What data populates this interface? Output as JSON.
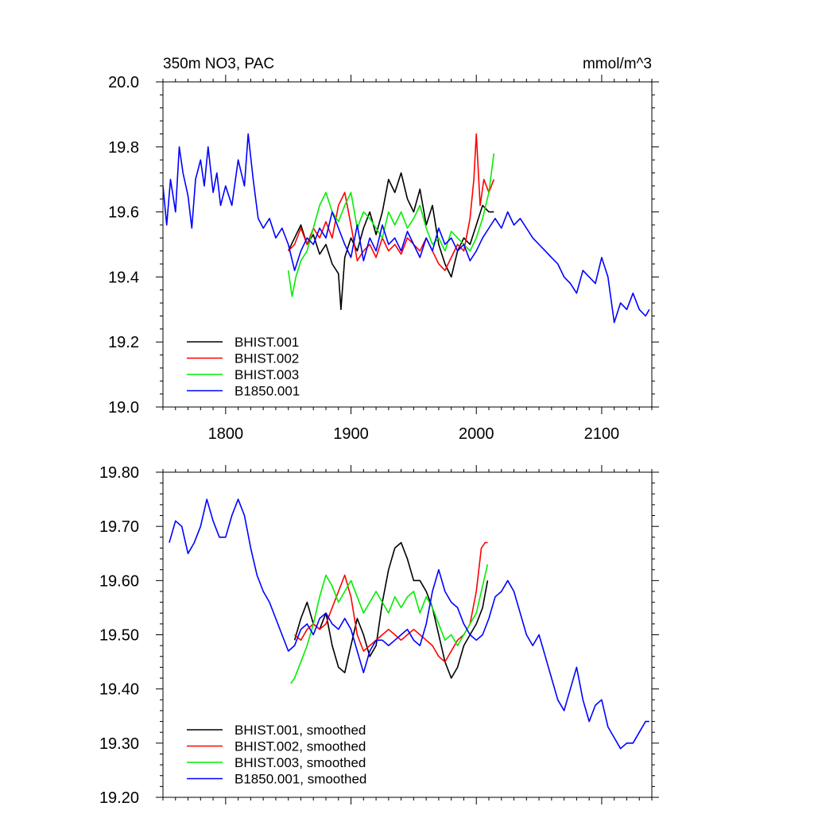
{
  "chart_data": [
    {
      "type": "line",
      "left_title": "350m NO3, PAC",
      "right_title": "mmol/m^3",
      "xlim": [
        1750,
        2140
      ],
      "ylim": [
        19.0,
        20.0
      ],
      "x_ticks": [
        1800,
        1900,
        2000,
        2100
      ],
      "x_tick_labels": [
        "1800",
        "1900",
        "2000",
        "2100"
      ],
      "y_ticks": [
        19.0,
        19.2,
        19.4,
        19.6,
        19.8,
        20.0
      ],
      "y_tick_labels": [
        "19.0",
        "19.2",
        "19.4",
        "19.6",
        "19.8",
        "20.0"
      ],
      "legend_position": "bottom-left",
      "grid": false,
      "series": [
        {
          "name": "BHIST.001",
          "color": "#000000",
          "x": [
            1850,
            1855,
            1860,
            1865,
            1870,
            1875,
            1880,
            1885,
            1890,
            1892,
            1895,
            1900,
            1905,
            1910,
            1915,
            1920,
            1925,
            1930,
            1935,
            1940,
            1945,
            1950,
            1955,
            1960,
            1965,
            1970,
            1975,
            1980,
            1985,
            1990,
            1995,
            2000,
            2005,
            2010,
            2014
          ],
          "y": [
            19.48,
            19.52,
            19.56,
            19.5,
            19.53,
            19.47,
            19.5,
            19.44,
            19.41,
            19.3,
            19.46,
            19.52,
            19.48,
            19.55,
            19.6,
            19.53,
            19.6,
            19.7,
            19.66,
            19.72,
            19.64,
            19.6,
            19.67,
            19.56,
            19.62,
            19.5,
            19.44,
            19.4,
            19.48,
            19.52,
            19.5,
            19.56,
            19.62,
            19.6,
            19.6
          ]
        },
        {
          "name": "BHIST.002",
          "color": "#ff0000",
          "x": [
            1850,
            1855,
            1860,
            1865,
            1870,
            1875,
            1880,
            1885,
            1890,
            1895,
            1900,
            1905,
            1910,
            1915,
            1920,
            1925,
            1930,
            1935,
            1940,
            1945,
            1950,
            1955,
            1960,
            1965,
            1970,
            1975,
            1980,
            1985,
            1990,
            1995,
            1998,
            2000,
            2003,
            2006,
            2010,
            2014
          ],
          "y": [
            19.48,
            19.5,
            19.55,
            19.5,
            19.55,
            19.52,
            19.57,
            19.52,
            19.62,
            19.66,
            19.56,
            19.45,
            19.48,
            19.5,
            19.46,
            19.52,
            19.48,
            19.5,
            19.47,
            19.52,
            19.5,
            19.48,
            19.52,
            19.48,
            19.44,
            19.42,
            19.46,
            19.5,
            19.48,
            19.58,
            19.7,
            19.84,
            19.62,
            19.7,
            19.66,
            19.7
          ]
        },
        {
          "name": "BHIST.003",
          "color": "#00ee00",
          "x": [
            1850,
            1853,
            1856,
            1860,
            1865,
            1870,
            1875,
            1880,
            1885,
            1890,
            1895,
            1900,
            1905,
            1910,
            1915,
            1920,
            1925,
            1930,
            1935,
            1940,
            1945,
            1950,
            1955,
            1960,
            1965,
            1970,
            1975,
            1980,
            1985,
            1990,
            1995,
            2000,
            2005,
            2010,
            2014
          ],
          "y": [
            19.42,
            19.34,
            19.4,
            19.45,
            19.48,
            19.55,
            19.62,
            19.66,
            19.6,
            19.57,
            19.62,
            19.66,
            19.55,
            19.6,
            19.58,
            19.55,
            19.52,
            19.6,
            19.56,
            19.6,
            19.55,
            19.58,
            19.62,
            19.55,
            19.5,
            19.52,
            19.48,
            19.54,
            19.52,
            19.5,
            19.48,
            19.52,
            19.58,
            19.66,
            19.78
          ]
        },
        {
          "name": "B1850.001",
          "color": "#0000ff",
          "x": [
            1750,
            1753,
            1756,
            1760,
            1763,
            1766,
            1770,
            1773,
            1776,
            1780,
            1783,
            1786,
            1790,
            1793,
            1796,
            1800,
            1805,
            1810,
            1815,
            1818,
            1822,
            1826,
            1830,
            1835,
            1840,
            1845,
            1850,
            1855,
            1860,
            1865,
            1870,
            1875,
            1880,
            1885,
            1890,
            1895,
            1900,
            1905,
            1910,
            1915,
            1920,
            1925,
            1930,
            1935,
            1940,
            1945,
            1950,
            1955,
            1960,
            1965,
            1970,
            1975,
            1980,
            1985,
            1990,
            1995,
            2000,
            2005,
            2010,
            2015,
            2020,
            2025,
            2030,
            2035,
            2040,
            2045,
            2050,
            2055,
            2060,
            2065,
            2070,
            2075,
            2080,
            2085,
            2090,
            2095,
            2100,
            2105,
            2110,
            2115,
            2120,
            2125,
            2130,
            2135,
            2138
          ],
          "y": [
            19.68,
            19.56,
            19.7,
            19.6,
            19.8,
            19.72,
            19.65,
            19.55,
            19.7,
            19.76,
            19.68,
            19.8,
            19.66,
            19.72,
            19.62,
            19.68,
            19.62,
            19.76,
            19.68,
            19.84,
            19.7,
            19.58,
            19.55,
            19.58,
            19.52,
            19.55,
            19.5,
            19.42,
            19.48,
            19.52,
            19.5,
            19.55,
            19.52,
            19.6,
            19.55,
            19.5,
            19.46,
            19.56,
            19.45,
            19.52,
            19.48,
            19.56,
            19.5,
            19.52,
            19.48,
            19.54,
            19.5,
            19.46,
            19.52,
            19.48,
            19.55,
            19.5,
            19.52,
            19.48,
            19.5,
            19.45,
            19.48,
            19.52,
            19.55,
            19.58,
            19.55,
            19.6,
            19.56,
            19.58,
            19.55,
            19.52,
            19.5,
            19.48,
            19.46,
            19.44,
            19.4,
            19.38,
            19.35,
            19.42,
            19.4,
            19.38,
            19.46,
            19.4,
            19.26,
            19.32,
            19.3,
            19.35,
            19.3,
            19.28,
            19.3
          ]
        }
      ]
    },
    {
      "type": "line",
      "xlim": [
        1750,
        2140
      ],
      "ylim": [
        19.2,
        19.8
      ],
      "x_ticks": [
        1800,
        1900,
        2000,
        2100
      ],
      "y_ticks": [
        19.2,
        19.3,
        19.4,
        19.5,
        19.6,
        19.7,
        19.8
      ],
      "y_tick_labels": [
        "19.20",
        "19.30",
        "19.40",
        "19.50",
        "19.60",
        "19.70",
        "19.80"
      ],
      "legend_position": "bottom-left",
      "grid": false,
      "series": [
        {
          "name": "BHIST.001, smoothed",
          "color": "#000000",
          "x": [
            1855,
            1860,
            1865,
            1870,
            1875,
            1880,
            1885,
            1890,
            1895,
            1900,
            1905,
            1910,
            1915,
            1920,
            1925,
            1930,
            1935,
            1940,
            1945,
            1950,
            1955,
            1960,
            1965,
            1970,
            1975,
            1980,
            1985,
            1990,
            1995,
            2000,
            2005,
            2009
          ],
          "y": [
            19.49,
            19.53,
            19.56,
            19.52,
            19.51,
            19.54,
            19.48,
            19.44,
            19.43,
            19.48,
            19.53,
            19.5,
            19.46,
            19.48,
            19.56,
            19.62,
            19.66,
            19.67,
            19.64,
            19.6,
            19.6,
            19.58,
            19.55,
            19.5,
            19.45,
            19.42,
            19.44,
            19.48,
            19.5,
            19.52,
            19.55,
            19.6
          ]
        },
        {
          "name": "BHIST.002, smoothed",
          "color": "#ff0000",
          "x": [
            1855,
            1860,
            1865,
            1870,
            1875,
            1880,
            1885,
            1890,
            1895,
            1900,
            1905,
            1910,
            1915,
            1920,
            1925,
            1930,
            1935,
            1940,
            1945,
            1950,
            1955,
            1960,
            1965,
            1970,
            1975,
            1980,
            1985,
            1990,
            1995,
            2000,
            2004,
            2007,
            2009
          ],
          "y": [
            19.5,
            19.49,
            19.51,
            19.52,
            19.51,
            19.52,
            19.55,
            19.58,
            19.61,
            19.57,
            19.5,
            19.47,
            19.48,
            19.49,
            19.5,
            19.51,
            19.5,
            19.49,
            19.5,
            19.51,
            19.5,
            19.49,
            19.48,
            19.46,
            19.45,
            19.47,
            19.49,
            19.5,
            19.52,
            19.58,
            19.66,
            19.67,
            19.67
          ]
        },
        {
          "name": "BHIST.003, smoothed",
          "color": "#00ee00",
          "x": [
            1852,
            1855,
            1860,
            1865,
            1870,
            1875,
            1880,
            1885,
            1890,
            1895,
            1900,
            1905,
            1910,
            1915,
            1920,
            1925,
            1930,
            1935,
            1940,
            1945,
            1950,
            1955,
            1960,
            1965,
            1970,
            1975,
            1980,
            1985,
            1990,
            1995,
            2000,
            2005,
            2009
          ],
          "y": [
            19.41,
            19.42,
            19.45,
            19.48,
            19.52,
            19.57,
            19.61,
            19.59,
            19.56,
            19.58,
            19.6,
            19.57,
            19.54,
            19.56,
            19.58,
            19.56,
            19.54,
            19.57,
            19.55,
            19.57,
            19.58,
            19.54,
            19.57,
            19.55,
            19.52,
            19.49,
            19.5,
            19.48,
            19.5,
            19.52,
            19.54,
            19.59,
            19.63
          ]
        },
        {
          "name": "B1850.001, smoothed",
          "color": "#0000ff",
          "x": [
            1755,
            1760,
            1765,
            1770,
            1775,
            1780,
            1785,
            1790,
            1795,
            1800,
            1805,
            1810,
            1815,
            1820,
            1825,
            1830,
            1835,
            1840,
            1845,
            1850,
            1855,
            1860,
            1865,
            1870,
            1875,
            1880,
            1885,
            1890,
            1895,
            1900,
            1905,
            1910,
            1915,
            1920,
            1925,
            1930,
            1935,
            1940,
            1945,
            1950,
            1955,
            1960,
            1965,
            1970,
            1975,
            1980,
            1985,
            1990,
            1995,
            2000,
            2005,
            2010,
            2015,
            2020,
            2025,
            2030,
            2035,
            2040,
            2045,
            2050,
            2055,
            2060,
            2065,
            2070,
            2075,
            2080,
            2085,
            2090,
            2095,
            2100,
            2105,
            2110,
            2115,
            2120,
            2125,
            2130,
            2135,
            2138
          ],
          "y": [
            19.67,
            19.71,
            19.7,
            19.65,
            19.67,
            19.7,
            19.75,
            19.71,
            19.68,
            19.68,
            19.72,
            19.75,
            19.72,
            19.66,
            19.61,
            19.58,
            19.56,
            19.53,
            19.5,
            19.47,
            19.48,
            19.51,
            19.52,
            19.5,
            19.53,
            19.54,
            19.52,
            19.51,
            19.53,
            19.51,
            19.47,
            19.43,
            19.47,
            19.49,
            19.49,
            19.48,
            19.49,
            19.5,
            19.51,
            19.49,
            19.48,
            19.52,
            19.58,
            19.62,
            19.58,
            19.56,
            19.55,
            19.52,
            19.5,
            19.49,
            19.5,
            19.53,
            19.57,
            19.58,
            19.6,
            19.58,
            19.54,
            19.5,
            19.48,
            19.5,
            19.46,
            19.42,
            19.38,
            19.36,
            19.4,
            19.44,
            19.38,
            19.34,
            19.37,
            19.38,
            19.33,
            19.31,
            19.29,
            19.3,
            19.3,
            19.32,
            19.34,
            19.34
          ]
        }
      ]
    }
  ]
}
